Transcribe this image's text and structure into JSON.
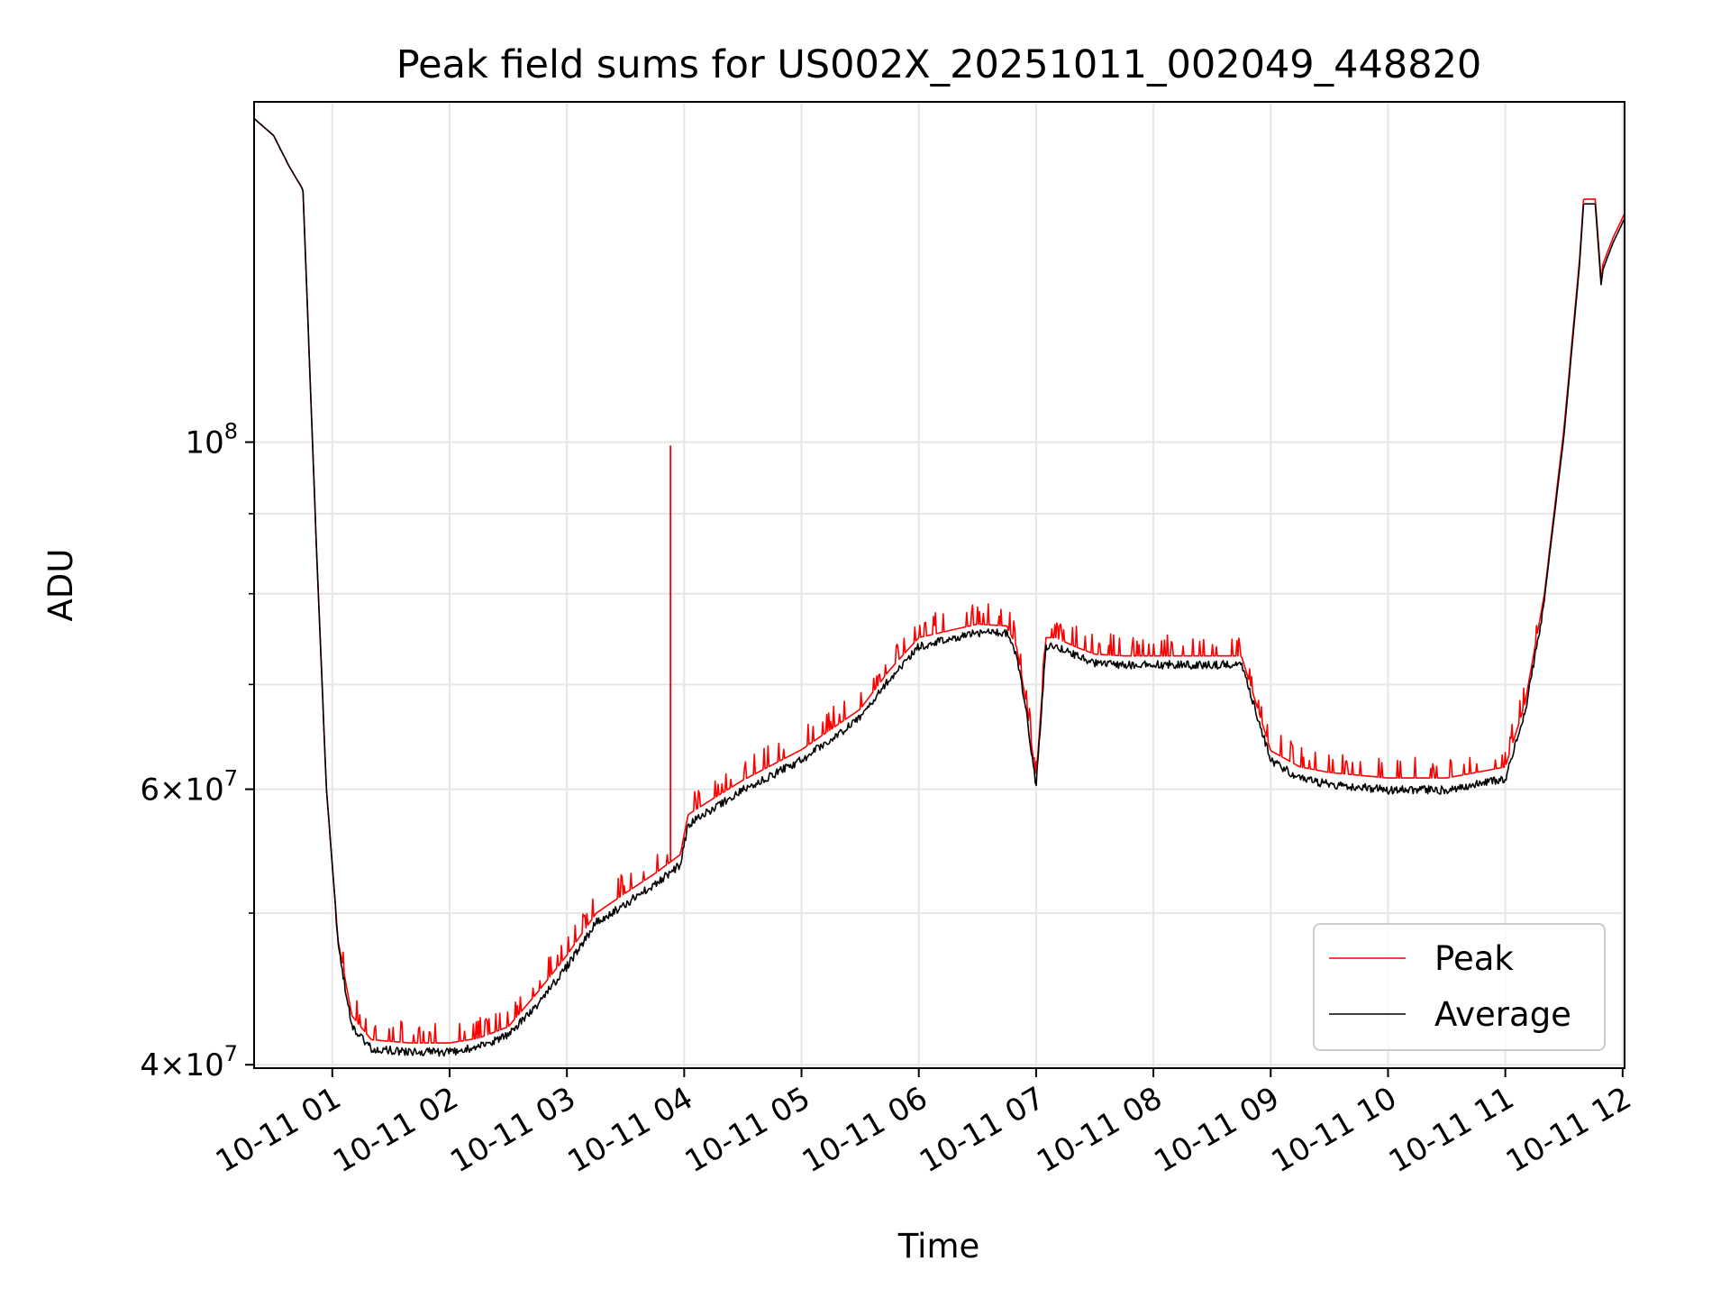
{
  "chart_data": {
    "type": "line",
    "title": "Peak field sums for US002X_20251011_002049_448820",
    "xlabel": "Time",
    "ylabel": "ADU",
    "yscale": "log",
    "ylim": [
      39800000,
      165000000
    ],
    "xlim": [
      "10-11 00:20",
      "10-11 12:01"
    ],
    "grid": true,
    "legend_position": "lower-right",
    "x_ticks": [
      "10-11 01",
      "10-11 02",
      "10-11 03",
      "10-11 04",
      "10-11 05",
      "10-11 06",
      "10-11 07",
      "10-11 08",
      "10-11 09",
      "10-11 10",
      "10-11 11",
      "10-11 12"
    ],
    "y_ticks": [
      {
        "value": 40000000,
        "mantissa": "4",
        "exponent": "7"
      },
      {
        "value": 60000000,
        "mantissa": "6",
        "exponent": "7"
      },
      {
        "value": 100000000,
        "mantissa": "10",
        "exponent": "8"
      }
    ],
    "y_minor_ticks": [
      50000000,
      70000000,
      80000000,
      90000000
    ],
    "x": [
      "10-11 00:20",
      "10-11 00:30",
      "10-11 00:38",
      "10-11 00:45",
      "10-11 00:52",
      "10-11 00:57",
      "10-11 01:03",
      "10-11 01:10",
      "10-11 01:20",
      "10-11 01:40",
      "10-11 02:00",
      "10-11 02:15",
      "10-11 02:30",
      "10-11 02:45",
      "10-11 03:00",
      "10-11 03:15",
      "10-11 03:30",
      "10-11 03:45",
      "10-11 03:58",
      "10-11 04:02",
      "10-11 04:15",
      "10-11 04:30",
      "10-11 05:00",
      "10-11 05:30",
      "10-11 05:45",
      "10-11 06:00",
      "10-11 06:30",
      "10-11 06:45",
      "10-11 06:50",
      "10-11 06:55",
      "10-11 07:00",
      "10-11 07:05",
      "10-11 07:10",
      "10-11 07:15",
      "10-11 07:20",
      "10-11 07:25",
      "10-11 07:30",
      "10-11 07:45",
      "10-11 08:00",
      "10-11 08:30",
      "10-11 08:45",
      "10-11 09:00",
      "10-11 09:15",
      "10-11 09:30",
      "10-11 10:00",
      "10-11 10:30",
      "10-11 11:00",
      "10-11 11:10",
      "10-11 11:20",
      "10-11 11:30",
      "10-11 11:38",
      "10-11 11:40",
      "10-11 11:44",
      "10-11 11:46",
      "10-11 11:49",
      "10-11 11:50",
      "10-11 11:55",
      "10-11 12:01"
    ],
    "series": [
      {
        "name": "Peak",
        "color": "#ff0000",
        "values": [
          161000000,
          157000000,
          150000000,
          145000000,
          85000000,
          60000000,
          48000000,
          43000000,
          41500000,
          41300000,
          41300000,
          41600000,
          42300000,
          44500000,
          47000000,
          50000000,
          51500000,
          53000000,
          54500000,
          57800000,
          59200000,
          60800000,
          63600000,
          67500000,
          71500000,
          75000000,
          76500000,
          76300000,
          74000000,
          68000000,
          60800000,
          75000000,
          75000000,
          74500000,
          74000000,
          73600000,
          73200000,
          73000000,
          73000000,
          73000000,
          73000000,
          63500000,
          62000000,
          61500000,
          61000000,
          61000000,
          62000000,
          68000000,
          80000000,
          102000000,
          131000000,
          143000000,
          143000000,
          143000000,
          127000000,
          130000000,
          135000000,
          140000000
        ]
      },
      {
        "name": "Average",
        "color": "#000000",
        "values": [
          161000000,
          157000000,
          150000000,
          145000000,
          85000000,
          60000000,
          48000000,
          42500000,
          41200000,
          41000000,
          41000000,
          41300000,
          42000000,
          44000000,
          46500000,
          49600000,
          51000000,
          52500000,
          54000000,
          57300000,
          58700000,
          60300000,
          63000000,
          67000000,
          71000000,
          74500000,
          76000000,
          76000000,
          73500000,
          67500000,
          60500000,
          74500000,
          74500000,
          74000000,
          73500000,
          73100000,
          72700000,
          72500000,
          72500000,
          72500000,
          72500000,
          63000000,
          61300000,
          60800000,
          60300000,
          60300000,
          61300000,
          67500000,
          79500000,
          101000000,
          130000000,
          142000000,
          142000000,
          142000000,
          126000000,
          129000000,
          134000000,
          139000000
        ]
      }
    ],
    "annotations": [
      {
        "series": "Peak",
        "x": "10-11 03:53",
        "y": 99500000,
        "label": ""
      }
    ]
  }
}
